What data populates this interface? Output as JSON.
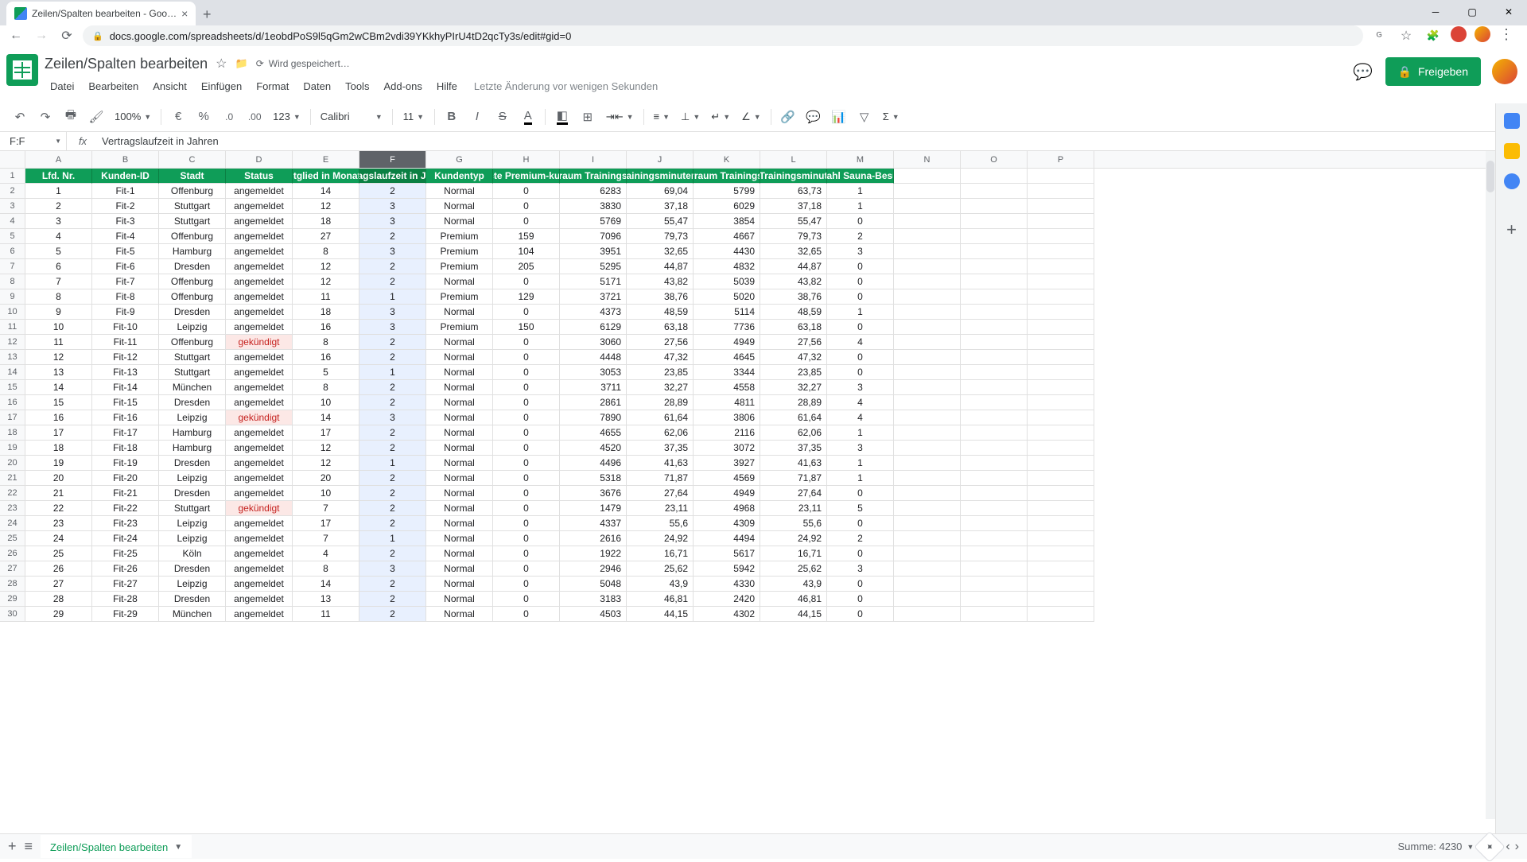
{
  "browser": {
    "tab_title": "Zeilen/Spalten bearbeiten - Goo…",
    "url": "docs.google.com/spreadsheets/d/1eobdPoS9l5qGm2wCBm2vdi39YKkhyPIrU4tD2qcTy3s/edit#gid=0"
  },
  "doc": {
    "title": "Zeilen/Spalten bearbeiten",
    "save_status": "Wird gespeichert…",
    "last_edit": "Letzte Änderung vor wenigen Sekunden",
    "share_label": "Freigeben"
  },
  "menus": [
    "Datei",
    "Bearbeiten",
    "Ansicht",
    "Einfügen",
    "Format",
    "Daten",
    "Tools",
    "Add-ons",
    "Hilfe"
  ],
  "toolbar": {
    "zoom": "100%",
    "font": "Calibri",
    "size": "11",
    "currency": "€",
    "pct": "%",
    "dec_dec": ".0",
    "dec_inc": ".00",
    "num_fmt": "123"
  },
  "fx": {
    "name": "F:F",
    "value": "Vertragslaufzeit in Jahren"
  },
  "columns": {
    "letters": [
      "A",
      "B",
      "C",
      "D",
      "E",
      "F",
      "G",
      "H",
      "I",
      "J",
      "K",
      "L",
      "M",
      "N",
      "O",
      "P"
    ],
    "widths": [
      84,
      84,
      84,
      84,
      84,
      84,
      84,
      84,
      84,
      84,
      84,
      84,
      84,
      84,
      84,
      84
    ],
    "headers": [
      "Lfd. Nr.",
      "Kunden-ID",
      "Stadt",
      "Status",
      "itglied in Monat",
      "ragslaufzeit in Ja",
      "Kundentyp",
      "cte Premium-kur",
      "raum Trainings",
      "rainingsminuten",
      "rraum Trainings",
      "Trainingsminut",
      "zahl Sauna-Besu"
    ]
  },
  "selected_col_index": 5,
  "rows": [
    [
      1,
      "Fit-1",
      "Offenburg",
      "angemeldet",
      14,
      2,
      "Normal",
      0,
      6283,
      "69,04",
      5799,
      "63,73",
      1
    ],
    [
      2,
      "Fit-2",
      "Stuttgart",
      "angemeldet",
      12,
      3,
      "Normal",
      0,
      3830,
      "37,18",
      6029,
      "37,18",
      1
    ],
    [
      3,
      "Fit-3",
      "Stuttgart",
      "angemeldet",
      18,
      3,
      "Normal",
      0,
      5769,
      "55,47",
      3854,
      "55,47",
      0
    ],
    [
      4,
      "Fit-4",
      "Offenburg",
      "angemeldet",
      27,
      2,
      "Premium",
      159,
      7096,
      "79,73",
      4667,
      "79,73",
      2
    ],
    [
      5,
      "Fit-5",
      "Hamburg",
      "angemeldet",
      8,
      3,
      "Premium",
      104,
      3951,
      "32,65",
      4430,
      "32,65",
      3
    ],
    [
      6,
      "Fit-6",
      "Dresden",
      "angemeldet",
      12,
      2,
      "Premium",
      205,
      5295,
      "44,87",
      4832,
      "44,87",
      0
    ],
    [
      7,
      "Fit-7",
      "Offenburg",
      "angemeldet",
      12,
      2,
      "Normal",
      0,
      5171,
      "43,82",
      5039,
      "43,82",
      0
    ],
    [
      8,
      "Fit-8",
      "Offenburg",
      "angemeldet",
      11,
      1,
      "Premium",
      129,
      3721,
      "38,76",
      5020,
      "38,76",
      0
    ],
    [
      9,
      "Fit-9",
      "Dresden",
      "angemeldet",
      18,
      3,
      "Normal",
      0,
      4373,
      "48,59",
      5114,
      "48,59",
      1
    ],
    [
      10,
      "Fit-10",
      "Leipzig",
      "angemeldet",
      16,
      3,
      "Premium",
      150,
      6129,
      "63,18",
      7736,
      "63,18",
      0
    ],
    [
      11,
      "Fit-11",
      "Offenburg",
      "gekündigt",
      8,
      2,
      "Normal",
      0,
      3060,
      "27,56",
      4949,
      "27,56",
      4
    ],
    [
      12,
      "Fit-12",
      "Stuttgart",
      "angemeldet",
      16,
      2,
      "Normal",
      0,
      4448,
      "47,32",
      4645,
      "47,32",
      0
    ],
    [
      13,
      "Fit-13",
      "Stuttgart",
      "angemeldet",
      5,
      1,
      "Normal",
      0,
      3053,
      "23,85",
      3344,
      "23,85",
      0
    ],
    [
      14,
      "Fit-14",
      "München",
      "angemeldet",
      8,
      2,
      "Normal",
      0,
      3711,
      "32,27",
      4558,
      "32,27",
      3
    ],
    [
      15,
      "Fit-15",
      "Dresden",
      "angemeldet",
      10,
      2,
      "Normal",
      0,
      2861,
      "28,89",
      4811,
      "28,89",
      4
    ],
    [
      16,
      "Fit-16",
      "Leipzig",
      "gekündigt",
      14,
      3,
      "Normal",
      0,
      7890,
      "61,64",
      3806,
      "61,64",
      4
    ],
    [
      17,
      "Fit-17",
      "Hamburg",
      "angemeldet",
      17,
      2,
      "Normal",
      0,
      4655,
      "62,06",
      2116,
      "62,06",
      1
    ],
    [
      18,
      "Fit-18",
      "Hamburg",
      "angemeldet",
      12,
      2,
      "Normal",
      0,
      4520,
      "37,35",
      3072,
      "37,35",
      3
    ],
    [
      19,
      "Fit-19",
      "Dresden",
      "angemeldet",
      12,
      1,
      "Normal",
      0,
      4496,
      "41,63",
      3927,
      "41,63",
      1
    ],
    [
      20,
      "Fit-20",
      "Leipzig",
      "angemeldet",
      20,
      2,
      "Normal",
      0,
      5318,
      "71,87",
      4569,
      "71,87",
      1
    ],
    [
      21,
      "Fit-21",
      "Dresden",
      "angemeldet",
      10,
      2,
      "Normal",
      0,
      3676,
      "27,64",
      4949,
      "27,64",
      0
    ],
    [
      22,
      "Fit-22",
      "Stuttgart",
      "gekündigt",
      7,
      2,
      "Normal",
      0,
      1479,
      "23,11",
      4968,
      "23,11",
      5
    ],
    [
      23,
      "Fit-23",
      "Leipzig",
      "angemeldet",
      17,
      2,
      "Normal",
      0,
      4337,
      "55,6",
      4309,
      "55,6",
      0
    ],
    [
      24,
      "Fit-24",
      "Leipzig",
      "angemeldet",
      7,
      1,
      "Normal",
      0,
      2616,
      "24,92",
      4494,
      "24,92",
      2
    ],
    [
      25,
      "Fit-25",
      "Köln",
      "angemeldet",
      4,
      2,
      "Normal",
      0,
      1922,
      "16,71",
      5617,
      "16,71",
      0
    ],
    [
      26,
      "Fit-26",
      "Dresden",
      "angemeldet",
      8,
      3,
      "Normal",
      0,
      2946,
      "25,62",
      5942,
      "25,62",
      3
    ],
    [
      27,
      "Fit-27",
      "Leipzig",
      "angemeldet",
      14,
      2,
      "Normal",
      0,
      5048,
      "43,9",
      4330,
      "43,9",
      0
    ],
    [
      28,
      "Fit-28",
      "Dresden",
      "angemeldet",
      13,
      2,
      "Normal",
      0,
      3183,
      "46,81",
      2420,
      "46,81",
      0
    ],
    [
      29,
      "Fit-29",
      "München",
      "angemeldet",
      11,
      2,
      "Normal",
      0,
      4503,
      "44,15",
      4302,
      "44,15",
      0
    ]
  ],
  "sheet_tab": "Zeilen/Spalten bearbeiten",
  "sum_label": "Summe: 4230",
  "colors": {
    "header_bg": "#0f9d58",
    "kund_bg": "#fce8e6",
    "kund_fg": "#c5221f",
    "sel_bg": "#e8f0fe"
  }
}
